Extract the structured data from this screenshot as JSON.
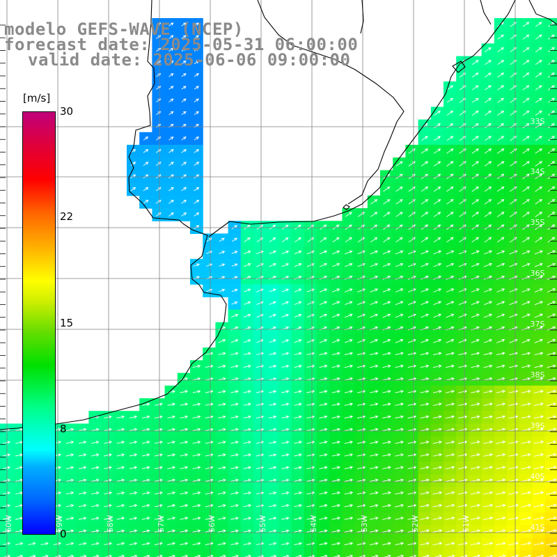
{
  "title": {
    "line1": "modelo GEFS-WAVE (NCEP)",
    "line2": "forecast date: 2025-05-31 06:00:00",
    "line3": "valid date: 2025-06-06 09:00:00"
  },
  "colorbar": {
    "unit": "[m/s]",
    "labels": [
      "30",
      "22",
      "15",
      "8",
      "0"
    ],
    "colors": [
      "#0000ff",
      "#00b0ff",
      "#00ffff",
      "#00e000",
      "#ffff00",
      "#ff6600",
      "#ff0000",
      "#c0007a"
    ]
  },
  "lat_labels": [
    "33S",
    "34S",
    "35S",
    "36S",
    "37S",
    "38S",
    "39S",
    "40S",
    "41S"
  ],
  "lon_labels": [
    "60W",
    "59W",
    "58W",
    "57W",
    "56W",
    "55W",
    "54W",
    "53W",
    "52W",
    "51W"
  ],
  "colors": {
    "land": "#ffffff",
    "grid": "#7f7f7f",
    "coast": "#000000",
    "arrow": "#ffffff",
    "title": "#8a8a8a"
  }
}
